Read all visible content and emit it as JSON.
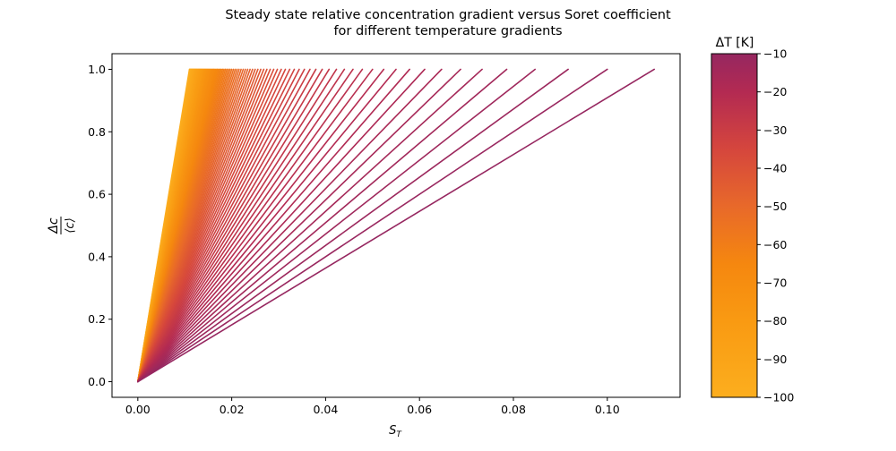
{
  "chart_data": {
    "type": "line",
    "title_line1": "Steady state relative concentration gradient versus Soret coefficient",
    "title_line2": "for different temperature gradients",
    "xlabel": "S",
    "xlabel_sub": "T",
    "ylabel_num": "Δc",
    "ylabel_den": "⟨c⟩",
    "xlim": [
      -0.0055,
      0.1155
    ],
    "ylim": [
      -0.05,
      1.05
    ],
    "xticks": [
      {
        "v": 0.0,
        "label": "0.00"
      },
      {
        "v": 0.02,
        "label": "0.02"
      },
      {
        "v": 0.04,
        "label": "0.04"
      },
      {
        "v": 0.06,
        "label": "0.06"
      },
      {
        "v": 0.08,
        "label": "0.08"
      },
      {
        "v": 0.1,
        "label": "0.10"
      }
    ],
    "yticks": [
      {
        "v": 0.0,
        "label": "0.0"
      },
      {
        "v": 0.2,
        "label": "0.2"
      },
      {
        "v": 0.4,
        "label": "0.4"
      },
      {
        "v": 0.6,
        "label": "0.6"
      },
      {
        "v": 0.8,
        "label": "0.8"
      },
      {
        "v": 1.0,
        "label": "1.0"
      }
    ],
    "series_rule": "each line runs from (0, 0) to (S_T, 1.0) with S_T = 1.1 / |ΔT|; ΔT from -10 to -100 K",
    "deltaT": [
      -10,
      -11,
      -12,
      -13,
      -14,
      -15,
      -16,
      -17,
      -18,
      -19,
      -20,
      -21,
      -22,
      -23,
      -24,
      -25,
      -26,
      -27,
      -28,
      -29,
      -30,
      -31,
      -32,
      -33,
      -34,
      -35,
      -36,
      -37,
      -38,
      -39,
      -40,
      -41,
      -42,
      -43,
      -44,
      -45,
      -46,
      -47,
      -48,
      -49,
      -50,
      -51,
      -52,
      -53,
      -54,
      -55,
      -56,
      -57,
      -58,
      -59,
      -60,
      -61,
      -62,
      -63,
      -64,
      -65,
      -66,
      -67,
      -68,
      -69,
      -70,
      -71,
      -72,
      -73,
      -74,
      -75,
      -76,
      -77,
      -78,
      -79,
      -80,
      -81,
      -82,
      -83,
      -84,
      -85,
      -86,
      -87,
      -88,
      -89,
      -90,
      -91,
      -92,
      -93,
      -94,
      -95,
      -96,
      -97,
      -98,
      -99,
      -100
    ],
    "line_end_y": 1.0,
    "line_numerator": 1.1,
    "colorbar": {
      "label": "ΔT [K]",
      "min": -100,
      "max": -10,
      "ticks": [
        {
          "v": -10,
          "label": "−10"
        },
        {
          "v": -20,
          "label": "−20"
        },
        {
          "v": -30,
          "label": "−30"
        },
        {
          "v": -40,
          "label": "−40"
        },
        {
          "v": -50,
          "label": "−50"
        },
        {
          "v": -60,
          "label": "−60"
        },
        {
          "v": -70,
          "label": "−70"
        },
        {
          "v": -80,
          "label": "−80"
        },
        {
          "v": -90,
          "label": "−90"
        },
        {
          "v": -100,
          "label": "−100"
        }
      ],
      "colormap_stops": [
        {
          "v": -100,
          "color": "#fcae1e"
        },
        {
          "v": -80,
          "color": "#f99a12"
        },
        {
          "v": -65,
          "color": "#f5870f"
        },
        {
          "v": -50,
          "color": "#e8692a"
        },
        {
          "v": -35,
          "color": "#d5463d"
        },
        {
          "v": -20,
          "color": "#b32a52"
        },
        {
          "v": -10,
          "color": "#962760"
        }
      ]
    }
  }
}
